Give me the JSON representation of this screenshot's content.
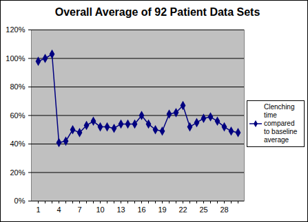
{
  "chart_data": {
    "type": "line",
    "title": "Overall Average of 92 Patient Data Sets",
    "categories": [
      1,
      null,
      null,
      4,
      null,
      null,
      7,
      null,
      null,
      10,
      null,
      null,
      13,
      null,
      null,
      16,
      null,
      null,
      19,
      null,
      null,
      22,
      null,
      null,
      25,
      null,
      null,
      28,
      null,
      null
    ],
    "series": [
      {
        "name": "Clenching time compared to baseline average",
        "color": "#000080",
        "marker": "diamond",
        "values": [
          98,
          100,
          103,
          41,
          42,
          50,
          48,
          53,
          56,
          52,
          52,
          51,
          54,
          54,
          54,
          60,
          54,
          50,
          49,
          61,
          62,
          67,
          52,
          55,
          58,
          59,
          56,
          52,
          49,
          48
        ]
      }
    ],
    "ylim": [
      0,
      120
    ],
    "yticks": [
      {
        "value": 0,
        "label": "0%"
      },
      {
        "value": 20,
        "label": "20%"
      },
      {
        "value": 40,
        "label": "40%"
      },
      {
        "value": 60,
        "label": "60%"
      },
      {
        "value": 80,
        "label": "80%"
      },
      {
        "value": 100,
        "label": "100%"
      },
      {
        "value": 120,
        "label": "120%"
      }
    ],
    "grid": true,
    "legend": "right"
  }
}
